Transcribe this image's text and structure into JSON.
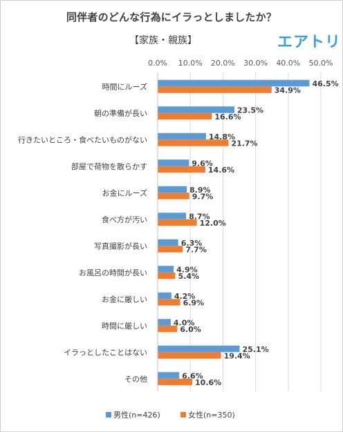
{
  "header": {
    "title": "同伴者のどんな行為にイラっとしましたか？",
    "subtitle": "【家族・親族】",
    "logo_text": "エアトリ"
  },
  "colors": {
    "male": "#5b9bd5",
    "female": "#ed7d31",
    "grid": "#d9d9d9",
    "logo": "#3aa0d8"
  },
  "chart_data": {
    "type": "bar",
    "orientation": "horizontal",
    "title": "同伴者のどんな行為にイラっとしましたか？",
    "subtitle": "【家族・親族】",
    "categories": [
      "時間にルーズ",
      "朝の準備が長い",
      "行きたいところ・食べたいものがない",
      "部屋で荷物を散らかす",
      "お金にルーズ",
      "食べ方が汚い",
      "写真撮影が長い",
      "お風呂の時間が長い",
      "お金に厳しい",
      "時間に厳しい",
      "イラっとしたことはない",
      "その他"
    ],
    "series": [
      {
        "name": "男性(n=426)",
        "values": [
          46.5,
          23.5,
          14.8,
          9.6,
          8.9,
          8.7,
          6.3,
          4.9,
          4.2,
          4.0,
          25.1,
          6.6
        ],
        "labels": [
          "46.5%",
          "23.5%",
          "14.8%",
          "9.6%",
          "8.9%",
          "8.7%",
          "6.3%",
          "4.9%",
          "4.2%",
          "4.0%",
          "25.1%",
          "6.6%"
        ],
        "color": "#5b9bd5"
      },
      {
        "name": "女性(n=350)",
        "values": [
          34.9,
          16.6,
          21.7,
          14.6,
          9.7,
          12.0,
          7.7,
          5.4,
          6.9,
          6.0,
          19.4,
          10.6
        ],
        "labels": [
          "34.9%",
          "16.6%",
          "21.7%",
          "14.6%",
          "9.7%",
          "12.0%",
          "7.7%",
          "5.4%",
          "6.9%",
          "6.0%",
          "19.4%",
          "10.6%"
        ],
        "color": "#ed7d31"
      }
    ],
    "xlim": [
      0,
      50
    ],
    "xticks": [
      0,
      10,
      20,
      30,
      40,
      50
    ],
    "xtick_labels": [
      "0.0%",
      "10.0%",
      "20.0%",
      "30.0%",
      "40.0%",
      "50.0%"
    ],
    "x_axis_position": "top",
    "grid": true,
    "legend_position": "bottom"
  }
}
